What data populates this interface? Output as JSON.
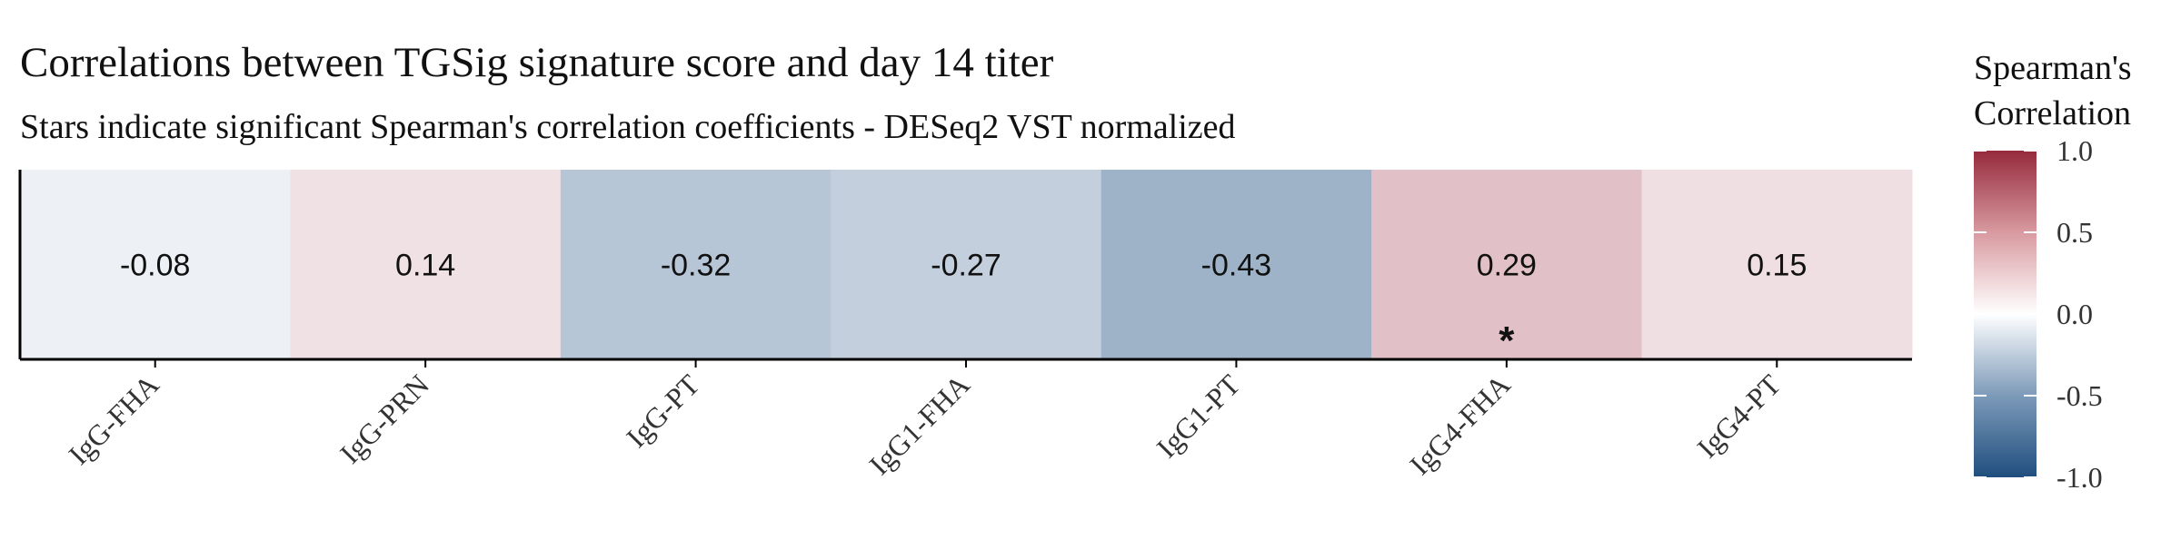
{
  "chart_data": {
    "type": "heatmap",
    "title": "Correlations between TGSig signature score and day 14 titer",
    "subtitle": "Stars indicate significant Spearman's correlation coefficients - DESeq2 VST normalized",
    "categories": [
      "IgG-FHA",
      "IgG-PRN",
      "IgG-PT",
      "IgG1-FHA",
      "IgG1-PT",
      "IgG4-FHA",
      "IgG4-PT"
    ],
    "values": [
      -0.08,
      0.14,
      -0.32,
      -0.27,
      -0.43,
      0.29,
      0.15
    ],
    "value_labels": [
      "-0.08",
      "0.14",
      "-0.32",
      "-0.27",
      "-0.43",
      "0.29",
      "0.15"
    ],
    "significant": [
      false,
      false,
      false,
      false,
      false,
      true,
      false
    ],
    "star_symbol": "*",
    "legend": {
      "title_line1": "Spearman's",
      "title_line2": "Correlation",
      "ticks": [
        1.0,
        0.5,
        0.0,
        -0.5,
        -1.0
      ],
      "tick_labels": [
        "1.0",
        "0.5",
        "0.0",
        "-0.5",
        "-1.0"
      ],
      "range": [
        -1.0,
        1.0
      ],
      "placement": "right"
    },
    "colors": {
      "low": "#1f4e7e",
      "mid": "#ffffff",
      "high": "#962a3d"
    }
  }
}
